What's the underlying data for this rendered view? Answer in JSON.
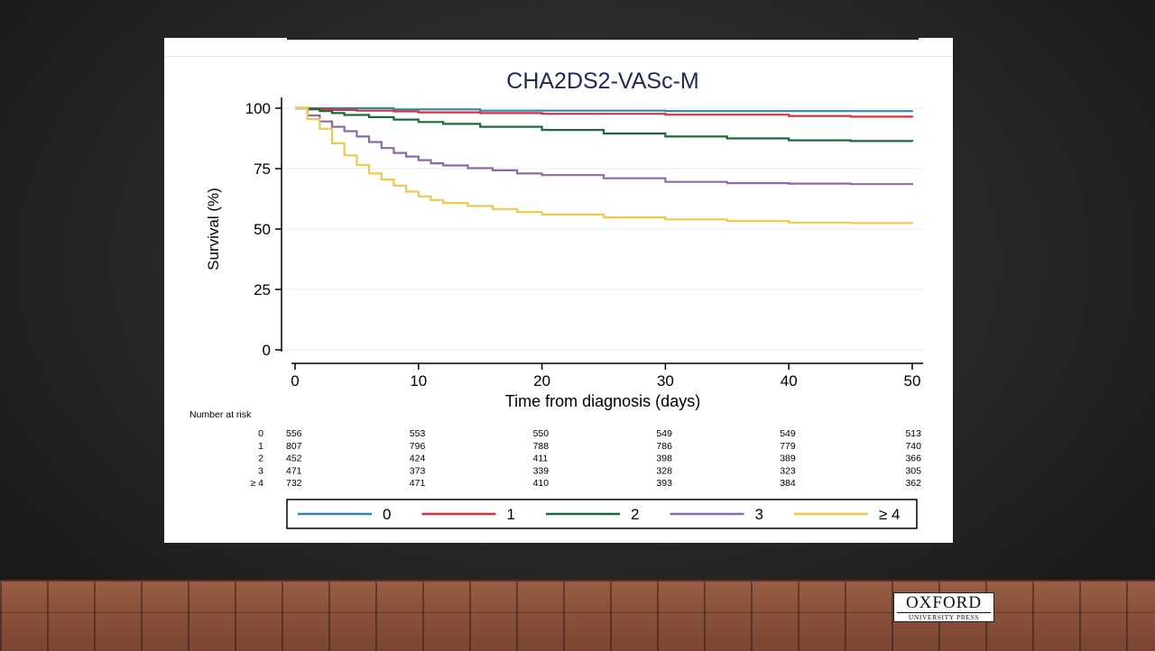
{
  "chart_data": {
    "type": "line",
    "title": "CHA2DS2-VASc-M",
    "xlabel": "Time from diagnosis (days)",
    "ylabel": "Survival (%)",
    "xlim": [
      0,
      50
    ],
    "ylim": [
      0,
      100
    ],
    "xticks": [
      "0",
      "10",
      "20",
      "30",
      "40",
      "50"
    ],
    "yticks": [
      "0",
      "25",
      "50",
      "75",
      "100"
    ],
    "grid": "horizontal, faint",
    "legend_position": "bottom",
    "series": [
      {
        "name": "0",
        "color": "#2e8ba3",
        "x": [
          0,
          1,
          8,
          15,
          30,
          50
        ],
        "y": [
          100,
          100,
          99.5,
          99,
          98.8,
          98.6
        ]
      },
      {
        "name": "1",
        "color": "#d9303c",
        "x": [
          0,
          1,
          2,
          3,
          5,
          8,
          10,
          15,
          20,
          30,
          40,
          45,
          50
        ],
        "y": [
          100,
          99.8,
          99.6,
          99.3,
          99,
          98.7,
          98.3,
          98,
          97.7,
          97.3,
          96.8,
          96.5,
          96.3
        ]
      },
      {
        "name": "2",
        "color": "#1a6b3c",
        "x": [
          0,
          1,
          2,
          3,
          4,
          6,
          8,
          10,
          12,
          15,
          20,
          25,
          30,
          35,
          40,
          45,
          50
        ],
        "y": [
          100,
          99.5,
          98.8,
          98,
          97.2,
          96.3,
          95.3,
          94.3,
          93.5,
          92.3,
          91,
          89.5,
          88.3,
          87.5,
          86.7,
          86.4,
          86.2
        ]
      },
      {
        "name": "3",
        "color": "#8b6aa8",
        "x": [
          0,
          1,
          2,
          3,
          4,
          5,
          6,
          7,
          8,
          9,
          10,
          11,
          12,
          14,
          16,
          18,
          20,
          25,
          30,
          35,
          40,
          45,
          50
        ],
        "y": [
          100,
          97,
          94.5,
          92.3,
          90.5,
          88.3,
          86,
          83.5,
          81.5,
          80,
          78.5,
          77.2,
          76.3,
          75.2,
          74.3,
          73,
          72.3,
          71,
          69.5,
          69,
          68.8,
          68.6,
          68.3
        ]
      },
      {
        "name": "≥ 4",
        "color": "#efc94c",
        "x": [
          0,
          1,
          2,
          3,
          4,
          5,
          6,
          7,
          8,
          9,
          10,
          11,
          12,
          14,
          16,
          18,
          20,
          25,
          30,
          35,
          40,
          45,
          50
        ],
        "y": [
          100,
          95.5,
          91.5,
          85.5,
          80.5,
          76.5,
          73,
          70.5,
          68,
          65.5,
          63.5,
          62,
          60.8,
          59.5,
          58.3,
          57,
          56,
          54.8,
          54,
          53.3,
          52.7,
          52.5,
          52.3
        ]
      }
    ],
    "risk_table": {
      "header": "Number at risk",
      "times": [
        0,
        10,
        20,
        30,
        40,
        50
      ],
      "rows": [
        {
          "label": "0",
          "values": [
            "556",
            "553",
            "550",
            "549",
            "549",
            "513"
          ]
        },
        {
          "label": "1",
          "values": [
            "807",
            "796",
            "788",
            "786",
            "779",
            "740"
          ]
        },
        {
          "label": "2",
          "values": [
            "452",
            "424",
            "411",
            "398",
            "389",
            "366"
          ]
        },
        {
          "label": "3",
          "values": [
            "471",
            "373",
            "339",
            "328",
            "323",
            "305"
          ]
        },
        {
          "label": "≥ 4",
          "values": [
            "732",
            "471",
            "410",
            "393",
            "384",
            "362"
          ]
        }
      ]
    }
  },
  "logo": {
    "line1": "OXFORD",
    "line2": "UNIVERSITY PRESS"
  }
}
